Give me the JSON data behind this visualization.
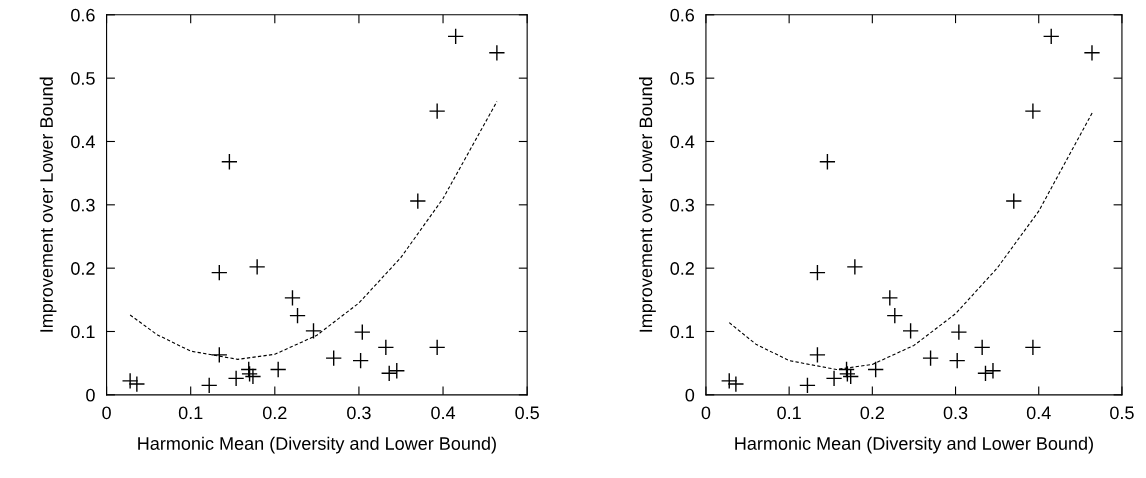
{
  "chart_data": [
    {
      "type": "scatter",
      "xlabel": "Harmonic Mean (Diversity and Lower Bound)",
      "ylabel": "Improvement over Lower Bound",
      "xlim": [
        0,
        0.5
      ],
      "ylim": [
        0,
        0.6
      ],
      "xticks": [
        0,
        0.1,
        0.2,
        0.3,
        0.4,
        0.5
      ],
      "yticks": [
        0,
        0.1,
        0.2,
        0.3,
        0.4,
        0.5,
        0.6
      ],
      "grid": false,
      "legend": false,
      "series": [
        {
          "type": "scatter",
          "marker": "cross",
          "color": "#000000",
          "x": [
            0.028,
            0.036,
            0.122,
            0.134,
            0.134,
            0.146,
            0.154,
            0.169,
            0.17,
            0.174,
            0.179,
            0.204,
            0.221,
            0.227,
            0.246,
            0.27,
            0.302,
            0.304,
            0.332,
            0.336,
            0.345,
            0.37,
            0.393,
            0.393,
            0.415,
            0.464
          ],
          "values": [
            0.022,
            0.017,
            0.015,
            0.063,
            0.193,
            0.368,
            0.026,
            0.04,
            0.033,
            0.029,
            0.202,
            0.04,
            0.153,
            0.125,
            0.101,
            0.058,
            0.054,
            0.099,
            0.075,
            0.034,
            0.038,
            0.306,
            0.448,
            0.075,
            0.566,
            0.54
          ]
        },
        {
          "type": "line",
          "line_style": "dashed",
          "marker": "none",
          "color": "#000000",
          "x": [
            0.028,
            0.06,
            0.1,
            0.156,
            0.2,
            0.25,
            0.3,
            0.35,
            0.4,
            0.464
          ],
          "values": [
            0.126,
            0.095,
            0.069,
            0.056,
            0.064,
            0.094,
            0.145,
            0.217,
            0.31,
            0.463
          ]
        }
      ]
    },
    {
      "type": "scatter",
      "xlabel": "Harmonic Mean (Diversity and Lower Bound)",
      "ylabel": "Improvement over Lower Bound",
      "xlim": [
        0,
        0.5
      ],
      "ylim": [
        0,
        0.6
      ],
      "xticks": [
        0,
        0.1,
        0.2,
        0.3,
        0.4,
        0.5
      ],
      "yticks": [
        0,
        0.1,
        0.2,
        0.3,
        0.4,
        0.5,
        0.6
      ],
      "grid": false,
      "legend": false,
      "series": [
        {
          "type": "scatter",
          "marker": "cross",
          "color": "#000000",
          "x": [
            0.028,
            0.036,
            0.122,
            0.134,
            0.134,
            0.146,
            0.154,
            0.169,
            0.17,
            0.174,
            0.179,
            0.204,
            0.221,
            0.227,
            0.246,
            0.27,
            0.302,
            0.304,
            0.332,
            0.336,
            0.345,
            0.37,
            0.393,
            0.393,
            0.415,
            0.464
          ],
          "values": [
            0.022,
            0.017,
            0.015,
            0.063,
            0.193,
            0.368,
            0.026,
            0.04,
            0.033,
            0.029,
            0.202,
            0.04,
            0.153,
            0.125,
            0.101,
            0.058,
            0.054,
            0.099,
            0.075,
            0.034,
            0.038,
            0.306,
            0.448,
            0.075,
            0.566,
            0.54
          ]
        },
        {
          "type": "line",
          "line_style": "dashed",
          "marker": "none",
          "color": "#000000",
          "x": [
            0.028,
            0.06,
            0.1,
            0.157,
            0.2,
            0.25,
            0.3,
            0.35,
            0.4,
            0.465
          ],
          "values": [
            0.114,
            0.08,
            0.054,
            0.04,
            0.048,
            0.078,
            0.128,
            0.2,
            0.29,
            0.447
          ]
        }
      ]
    }
  ]
}
